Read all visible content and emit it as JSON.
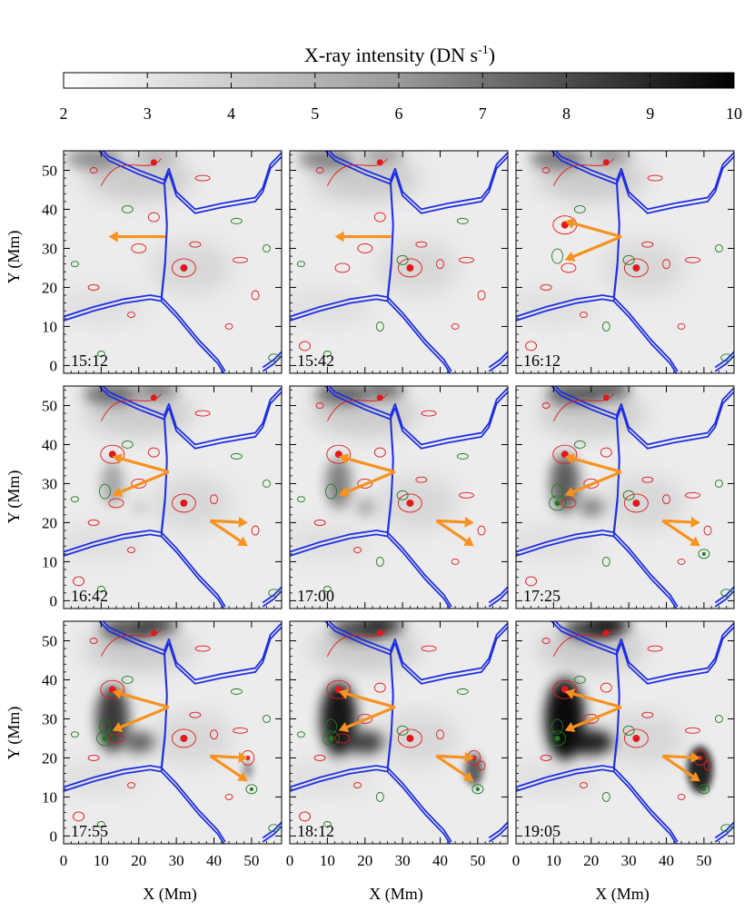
{
  "colorbar": {
    "title": "X-ray intensity (DN s",
    "title_superscript": "-1",
    "title_close": ")",
    "ticks": [
      "2",
      "3",
      "4",
      "5",
      "6",
      "7",
      "8",
      "9",
      "10"
    ],
    "range": [
      2,
      10
    ],
    "colormap": "white-to-black"
  },
  "axes": {
    "xlabel": "X (Mm)",
    "ylabel": "Y (Mm)",
    "x_ticks": [
      "0",
      "10",
      "20",
      "30",
      "40",
      "50"
    ],
    "y_ticks": [
      "0",
      "10",
      "20",
      "30",
      "40",
      "50"
    ],
    "xlim": [
      0,
      58
    ],
    "ylim": [
      -2,
      55
    ]
  },
  "colors": {
    "network_boundary": "#1f2fe0",
    "positive_polarity": "#e0191d",
    "negative_polarity": "#1f7a1f",
    "arrow": "#f7921e"
  },
  "panels": [
    {
      "time": "15:12"
    },
    {
      "time": "15:42"
    },
    {
      "time": "16:12"
    },
    {
      "time": "16:42"
    },
    {
      "time": "17:00"
    },
    {
      "time": "17:25"
    },
    {
      "time": "17:55"
    },
    {
      "time": "18:12"
    },
    {
      "time": "19:05"
    }
  ]
}
